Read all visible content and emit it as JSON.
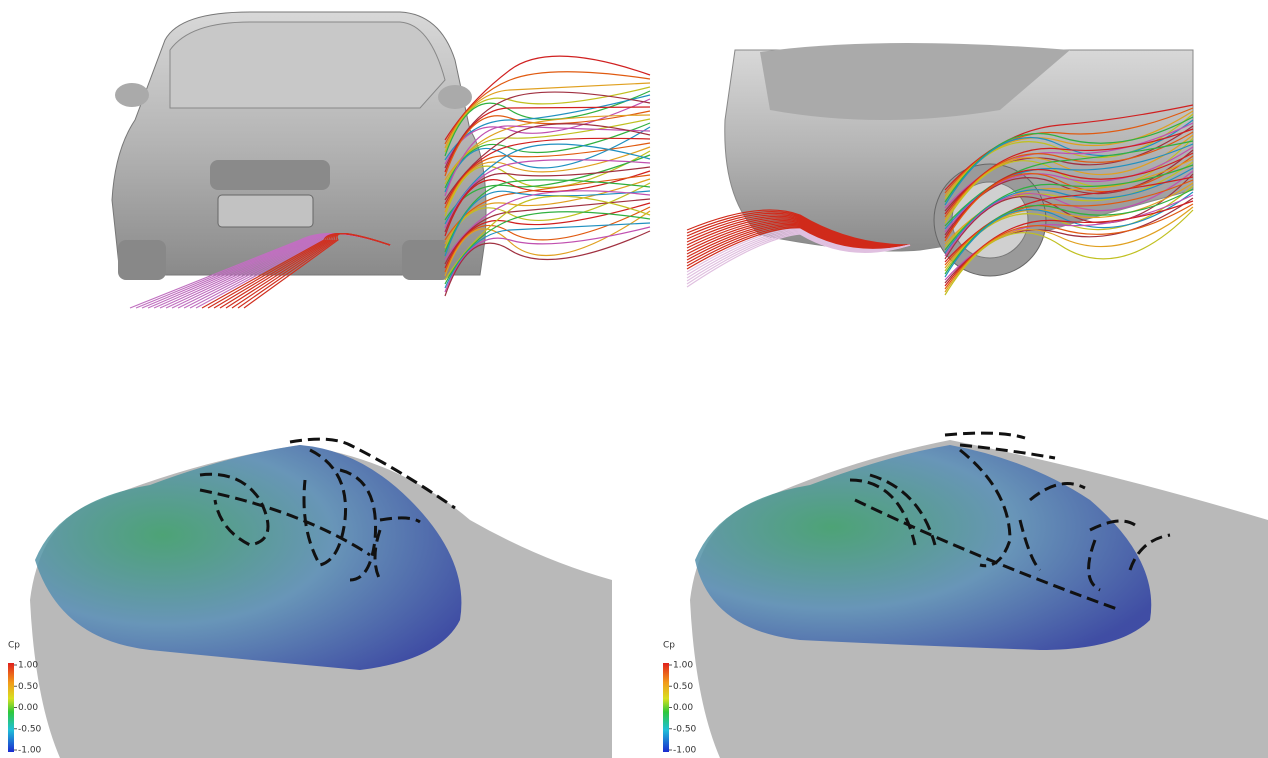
{
  "colorbars": [
    {
      "title": "Cp",
      "lim": [
        -1,
        1
      ],
      "ticks": [
        {
          "value": 1,
          "label": "1.00"
        },
        {
          "value": 0.5,
          "label": "0.50"
        },
        {
          "value": 0,
          "label": "0.00"
        },
        {
          "value": -0.5,
          "label": "-0.50"
        },
        {
          "value": -1,
          "label": "-1.00"
        }
      ]
    },
    {
      "title": "Cp",
      "lim": [
        -1,
        1
      ],
      "ticks": [
        {
          "value": 1,
          "label": "1.00"
        },
        {
          "value": 0.5,
          "label": "0.50"
        },
        {
          "value": 0,
          "label": "0.00"
        },
        {
          "value": -0.5,
          "label": "-0.50"
        },
        {
          "value": -1,
          "label": "-1.00"
        }
      ]
    }
  ]
}
